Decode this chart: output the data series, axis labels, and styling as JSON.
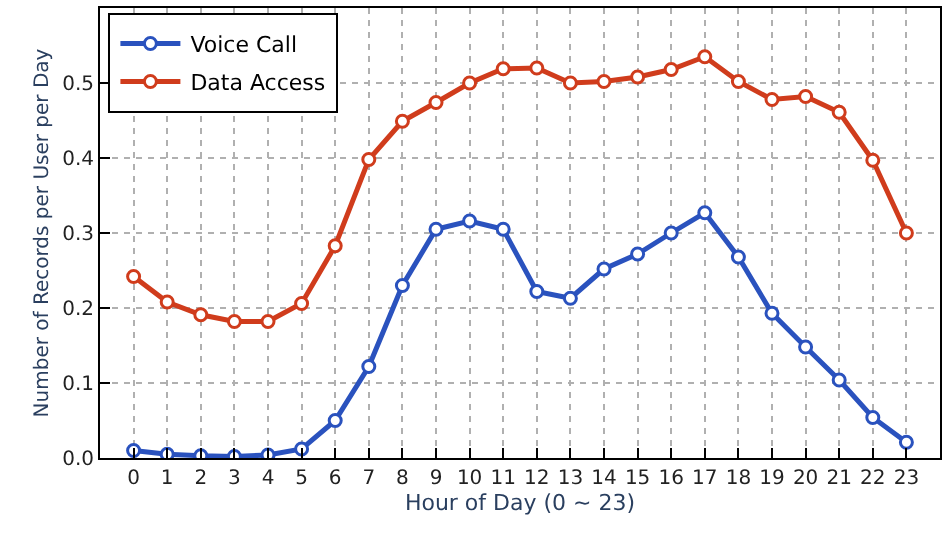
{
  "chart_data": {
    "type": "line",
    "xlabel": "Hour of Day (0 ~ 23)",
    "ylabel": "Number of Records per User per Day",
    "x": [
      0,
      1,
      2,
      3,
      4,
      5,
      6,
      7,
      8,
      9,
      10,
      11,
      12,
      13,
      14,
      15,
      16,
      17,
      18,
      19,
      20,
      21,
      22,
      23
    ],
    "series": [
      {
        "name": "Voice Call",
        "color": "#2a52be",
        "values": [
          0.01,
          0.005,
          0.003,
          0.002,
          0.004,
          0.012,
          0.05,
          0.122,
          0.23,
          0.305,
          0.316,
          0.305,
          0.222,
          0.213,
          0.252,
          0.272,
          0.3,
          0.327,
          0.268,
          0.193,
          0.148,
          0.104,
          0.054,
          0.021
        ]
      },
      {
        "name": "Data Access",
        "color": "#d03c1c",
        "values": [
          0.242,
          0.208,
          0.191,
          0.182,
          0.182,
          0.206,
          0.283,
          0.398,
          0.449,
          0.474,
          0.5,
          0.519,
          0.52,
          0.5,
          0.502,
          0.508,
          0.518,
          0.535,
          0.502,
          0.478,
          0.482,
          0.461,
          0.397,
          0.3
        ]
      }
    ],
    "xlim": [
      -1,
      24
    ],
    "xticks": [
      0,
      1,
      2,
      3,
      4,
      5,
      6,
      7,
      8,
      9,
      10,
      11,
      12,
      13,
      14,
      15,
      16,
      17,
      18,
      19,
      20,
      21,
      22,
      23
    ],
    "ylim": [
      0,
      0.6
    ],
    "yticks": [
      {
        "value": 0,
        "label": "0.0"
      },
      0.1,
      0.2,
      0.3,
      0.4,
      0.5
    ],
    "grid": true,
    "legend": "top left",
    "marker": "circle",
    "line_style": "solid"
  }
}
